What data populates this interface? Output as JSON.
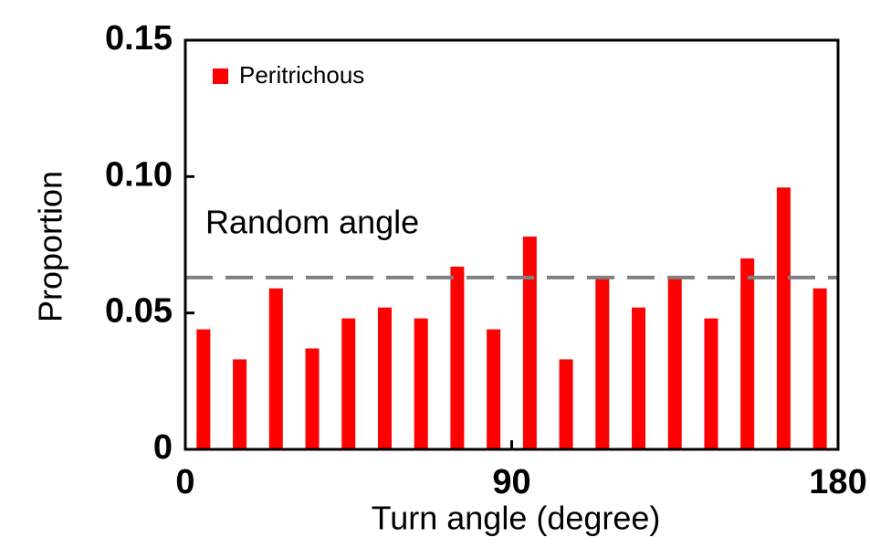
{
  "chart_data": {
    "type": "bar",
    "x_label": "Turn angle (degree)",
    "y_label": "Proportion",
    "x": [
      5,
      15,
      25,
      35,
      45,
      55,
      65,
      75,
      85,
      95,
      105,
      115,
      125,
      135,
      145,
      155,
      165,
      175
    ],
    "series": [
      {
        "name": "Peritrichous",
        "color": "#ff0000",
        "values": [
          0.044,
          0.033,
          0.059,
          0.037,
          0.048,
          0.052,
          0.048,
          0.067,
          0.044,
          0.078,
          0.033,
          0.063,
          0.052,
          0.063,
          0.048,
          0.07,
          0.096,
          0.059
        ]
      }
    ],
    "xlim": [
      0,
      180
    ],
    "xticks": [
      0,
      90,
      180
    ],
    "ylim": [
      0,
      0.15
    ],
    "yticks": [
      0,
      0.05,
      {
        "value": 0.1,
        "label": "0.10"
      },
      0.15
    ],
    "reference_line": {
      "value": 0.063,
      "label": "Random angle",
      "color": "#808080"
    },
    "legend": "upper left",
    "grid": false
  }
}
